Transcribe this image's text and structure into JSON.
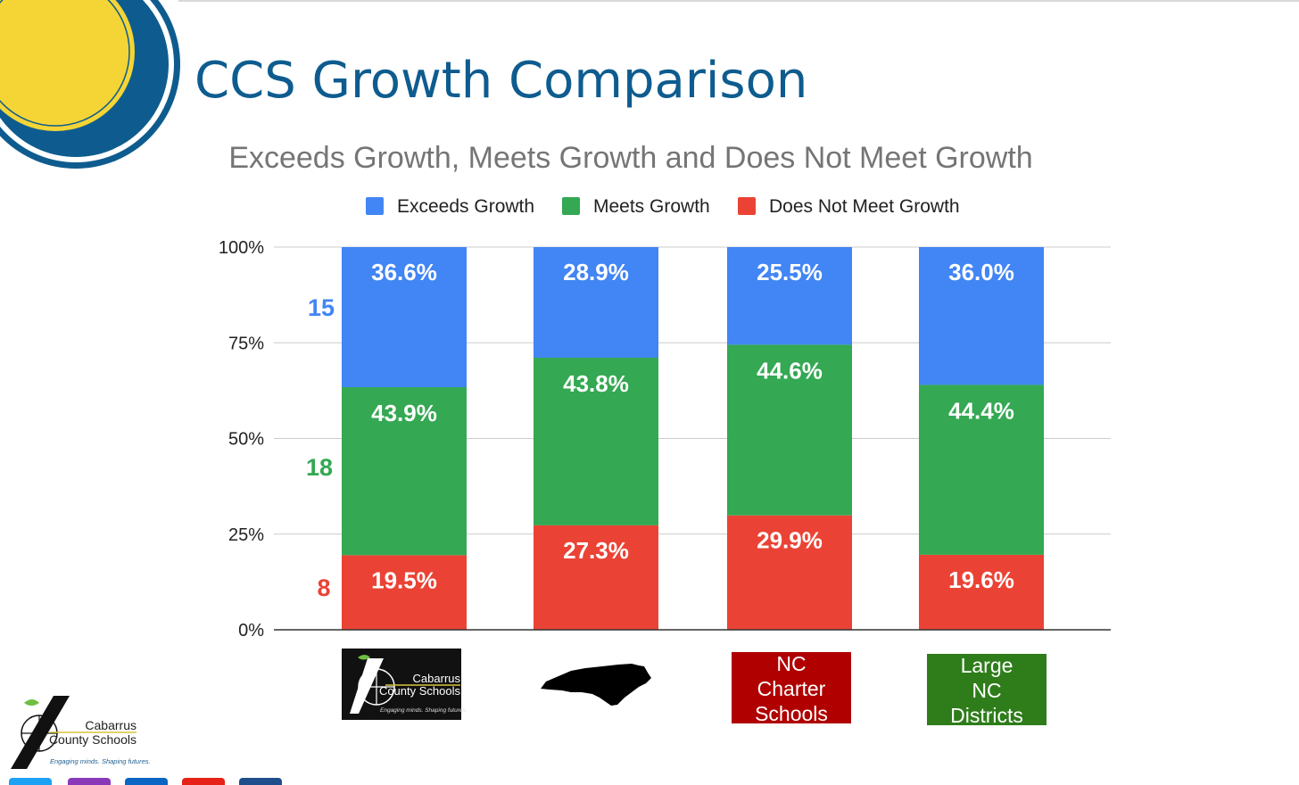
{
  "slide": {
    "title": "CCS Growth Comparison"
  },
  "colors": {
    "exceeds": "#4285f4",
    "meets": "#34a853",
    "not_meet": "#ea4335",
    "title": "#0e5c8f",
    "circle_yellow": "#f4d535",
    "circle_blue": "#0e5c8f"
  },
  "logo": {
    "name_line1": "Cabarrus",
    "name_line2": "County Schools",
    "tagline": "Engaging minds. Shaping futures."
  },
  "chart_data": {
    "type": "bar",
    "stacked": true,
    "title": "Exceeds Growth, Meets Growth and Does Not Meet Growth",
    "xlabel": "",
    "ylabel": "",
    "ylim": [
      0,
      100
    ],
    "yticks": [
      "0%",
      "25%",
      "50%",
      "75%",
      "100%"
    ],
    "legend_position": "top",
    "categories": [
      "Cabarrus County Schools",
      "NC",
      "NC Charter Schools",
      "Large NC Districts"
    ],
    "series": [
      {
        "name": "Does Not Meet Growth",
        "key": "not_meet",
        "values": [
          19.5,
          27.3,
          29.9,
          19.6
        ],
        "labels": [
          "19.5%",
          "27.3%",
          "29.9%",
          "19.6%"
        ]
      },
      {
        "name": "Meets Growth",
        "key": "meets",
        "values": [
          43.9,
          43.8,
          44.6,
          44.4
        ],
        "labels": [
          "43.9%",
          "43.8%",
          "44.6%",
          "44.4%"
        ]
      },
      {
        "name": "Exceeds Growth",
        "key": "exceeds",
        "values": [
          36.6,
          28.9,
          25.5,
          36.0
        ],
        "labels": [
          "36.6%",
          "28.9%",
          "25.5%",
          ""
        ]
      }
    ],
    "legend": [
      "Exceeds Growth",
      "Meets Growth",
      "Does Not Meet Growth"
    ],
    "top_labels": [
      "36.6%",
      "28.9%",
      "25.5%",
      "36.0%"
    ],
    "side_counts": [
      {
        "label": "15",
        "series": "exceeds"
      },
      {
        "label": "18",
        "series": "meets"
      },
      {
        "label": "8",
        "series": "not_meet"
      }
    ],
    "category_badges": [
      {
        "kind": "logo"
      },
      {
        "kind": "map"
      },
      {
        "kind": "text",
        "lines": [
          "NC",
          "Charter",
          "Schools"
        ],
        "color": "#b00000"
      },
      {
        "kind": "text",
        "lines": [
          "Large",
          "NC",
          "Districts"
        ],
        "color": "#2e7d1a"
      }
    ]
  },
  "social_icons": [
    "twitter-icon",
    "instagram-icon",
    "linkedin-icon",
    "youtube-icon",
    "facebook-icon"
  ]
}
